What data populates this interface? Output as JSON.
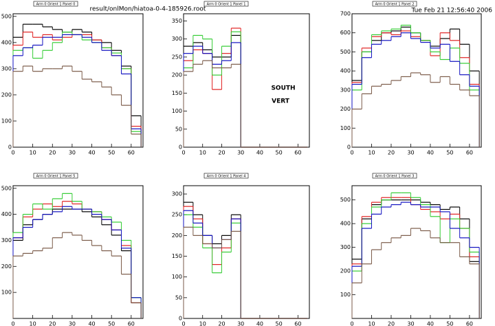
{
  "header": {
    "file": "result/onlMon/hiatoa-0-4-185926.root",
    "timestamp": "Tue Feb 21 12:56:40 2006"
  },
  "chart_data": [
    {
      "type": "histogram",
      "title": "Arm 0 Orient 1 Panel 0",
      "bins": [
        0,
        5,
        10,
        15,
        20,
        25,
        30,
        35,
        40,
        45,
        50,
        55,
        60,
        65
      ],
      "xlim": [
        0,
        66
      ],
      "xticks": [
        0,
        10,
        20,
        30,
        40,
        50,
        60
      ],
      "ylim": [
        0,
        510
      ],
      "yticks": [
        0,
        100,
        200,
        300,
        400,
        500
      ],
      "series": [
        {
          "color": "#000000",
          "values": [
            420,
            470,
            470,
            460,
            450,
            440,
            450,
            440,
            410,
            400,
            370,
            310,
            120
          ]
        },
        {
          "color": "#e02020",
          "values": [
            390,
            440,
            420,
            430,
            410,
            420,
            430,
            430,
            410,
            380,
            350,
            300,
            80
          ]
        },
        {
          "color": "#33cc33",
          "values": [
            370,
            380,
            340,
            370,
            400,
            440,
            430,
            410,
            400,
            380,
            360,
            300,
            60
          ]
        },
        {
          "color": "#1010c0",
          "values": [
            350,
            380,
            390,
            420,
            420,
            430,
            430,
            420,
            400,
            370,
            350,
            280,
            70
          ]
        },
        {
          "color": "#7a5a48",
          "values": [
            290,
            310,
            290,
            300,
            300,
            310,
            290,
            260,
            250,
            230,
            200,
            160,
            50
          ]
        }
      ]
    },
    {
      "type": "histogram",
      "title": "Arm 0 Orient 1 Panel 1",
      "bins": [
        0,
        5,
        10,
        15,
        20,
        25,
        30,
        35,
        40,
        45,
        50,
        55,
        60,
        65
      ],
      "xlim": [
        0,
        66
      ],
      "xticks": [
        0,
        10,
        20,
        30,
        40,
        50,
        60
      ],
      "ylim": [
        0,
        370
      ],
      "yticks": [
        0,
        50,
        100,
        150,
        200,
        250,
        300,
        350
      ],
      "annotations": [
        "SOUTH",
        "VERT"
      ],
      "series": [
        {
          "color": "#000000",
          "values": [
            280,
            290,
            270,
            250,
            250,
            310,
            0,
            0,
            0,
            0,
            0,
            0,
            0
          ]
        },
        {
          "color": "#e02020",
          "values": [
            240,
            270,
            260,
            160,
            260,
            330,
            0,
            0,
            0,
            0,
            0,
            0,
            0
          ]
        },
        {
          "color": "#33cc33",
          "values": [
            220,
            310,
            300,
            200,
            280,
            320,
            0,
            0,
            0,
            0,
            0,
            0,
            0
          ]
        },
        {
          "color": "#1010c0",
          "values": [
            260,
            280,
            260,
            230,
            240,
            290,
            0,
            0,
            0,
            0,
            0,
            0,
            0
          ]
        },
        {
          "color": "#7a5a48",
          "values": [
            210,
            230,
            240,
            220,
            220,
            230,
            0,
            0,
            0,
            0,
            0,
            0,
            0
          ]
        }
      ]
    },
    {
      "type": "histogram",
      "title": "Arm 0 Orient 1 Panel 2",
      "bins": [
        0,
        5,
        10,
        15,
        20,
        25,
        30,
        35,
        40,
        45,
        50,
        55,
        60,
        65
      ],
      "xlim": [
        0,
        66
      ],
      "xticks": [
        0,
        10,
        20,
        30,
        40,
        50,
        60
      ],
      "ylim": [
        0,
        700
      ],
      "yticks": [
        0,
        100,
        200,
        300,
        400,
        500,
        600,
        700
      ],
      "series": [
        {
          "color": "#000000",
          "values": [
            350,
            500,
            560,
            600,
            610,
            630,
            600,
            560,
            530,
            570,
            620,
            540,
            400
          ]
        },
        {
          "color": "#e02020",
          "values": [
            340,
            520,
            580,
            600,
            590,
            610,
            580,
            560,
            480,
            600,
            560,
            470,
            330
          ]
        },
        {
          "color": "#33cc33",
          "values": [
            300,
            500,
            590,
            610,
            620,
            640,
            600,
            560,
            500,
            460,
            520,
            440,
            300
          ]
        },
        {
          "color": "#1010c0",
          "values": [
            330,
            470,
            540,
            560,
            580,
            600,
            570,
            550,
            520,
            540,
            450,
            380,
            320
          ]
        },
        {
          "color": "#7a5a48",
          "values": [
            200,
            280,
            320,
            330,
            350,
            370,
            390,
            380,
            340,
            370,
            330,
            300,
            270
          ]
        }
      ]
    },
    {
      "type": "histogram",
      "title": "Arm 0 Orient 1 Panel 5",
      "bins": [
        0,
        5,
        10,
        15,
        20,
        25,
        30,
        35,
        40,
        45,
        50,
        55,
        60,
        65
      ],
      "xlim": [
        0,
        66
      ],
      "xticks": [
        0,
        10,
        20,
        30,
        40,
        50,
        60
      ],
      "ylim": [
        0,
        510
      ],
      "yticks": [
        100,
        200,
        300,
        400,
        500
      ],
      "series": [
        {
          "color": "#000000",
          "values": [
            300,
            360,
            380,
            400,
            420,
            420,
            420,
            410,
            390,
            360,
            320,
            260,
            60
          ]
        },
        {
          "color": "#e02020",
          "values": [
            310,
            390,
            420,
            440,
            430,
            450,
            440,
            420,
            410,
            380,
            340,
            280,
            60
          ]
        },
        {
          "color": "#33cc33",
          "values": [
            330,
            400,
            440,
            420,
            460,
            480,
            450,
            420,
            410,
            390,
            370,
            300,
            80
          ]
        },
        {
          "color": "#1010c0",
          "values": [
            310,
            350,
            380,
            400,
            410,
            430,
            420,
            420,
            400,
            380,
            340,
            270,
            80
          ]
        },
        {
          "color": "#7a5a48",
          "values": [
            240,
            250,
            260,
            270,
            310,
            330,
            320,
            300,
            280,
            260,
            240,
            170,
            60
          ]
        }
      ]
    },
    {
      "type": "histogram",
      "title": "Arm 0 Orient 1 Panel 4",
      "bins": [
        0,
        5,
        10,
        15,
        20,
        25,
        30,
        35,
        40,
        45,
        50,
        55,
        60,
        65
      ],
      "xlim": [
        0,
        66
      ],
      "xticks": [
        0,
        10,
        20,
        30,
        40,
        50,
        60
      ],
      "ylim": [
        0,
        320
      ],
      "yticks": [
        0,
        50,
        100,
        150,
        200,
        250,
        300
      ],
      "series": [
        {
          "color": "#000000",
          "values": [
            280,
            250,
            200,
            180,
            200,
            250,
            0,
            0,
            0,
            0,
            0,
            0,
            0
          ]
        },
        {
          "color": "#e02020",
          "values": [
            270,
            240,
            180,
            130,
            170,
            240,
            0,
            0,
            0,
            0,
            0,
            0,
            0
          ]
        },
        {
          "color": "#33cc33",
          "values": [
            250,
            220,
            170,
            110,
            160,
            230,
            0,
            0,
            0,
            0,
            0,
            0,
            0
          ]
        },
        {
          "color": "#1010c0",
          "values": [
            260,
            230,
            200,
            170,
            190,
            240,
            0,
            0,
            0,
            0,
            0,
            0,
            0
          ]
        },
        {
          "color": "#7a5a48",
          "values": [
            220,
            200,
            180,
            170,
            190,
            210,
            0,
            0,
            0,
            0,
            0,
            0,
            0
          ]
        }
      ]
    },
    {
      "type": "histogram",
      "title": "Arm 0 Orient 1 Panel 3",
      "bins": [
        0,
        5,
        10,
        15,
        20,
        25,
        30,
        35,
        40,
        45,
        50,
        55,
        60,
        65
      ],
      "xlim": [
        0,
        66
      ],
      "xticks": [
        0,
        10,
        20,
        30,
        40,
        50,
        60
      ],
      "ylim": [
        0,
        560
      ],
      "yticks": [
        100,
        200,
        300,
        400,
        500
      ],
      "series": [
        {
          "color": "#000000",
          "values": [
            250,
            420,
            480,
            500,
            500,
            500,
            500,
            490,
            480,
            460,
            470,
            420,
            240
          ]
        },
        {
          "color": "#e02020",
          "values": [
            230,
            430,
            490,
            510,
            510,
            510,
            480,
            460,
            450,
            420,
            440,
            380,
            260
          ]
        },
        {
          "color": "#33cc33",
          "values": [
            200,
            400,
            470,
            500,
            530,
            530,
            510,
            480,
            430,
            320,
            420,
            380,
            280
          ]
        },
        {
          "color": "#1010c0",
          "values": [
            220,
            380,
            440,
            470,
            480,
            490,
            480,
            470,
            470,
            450,
            380,
            340,
            300
          ]
        },
        {
          "color": "#7a5a48",
          "values": [
            150,
            230,
            290,
            320,
            340,
            350,
            380,
            370,
            340,
            320,
            320,
            260,
            230
          ]
        }
      ]
    }
  ]
}
